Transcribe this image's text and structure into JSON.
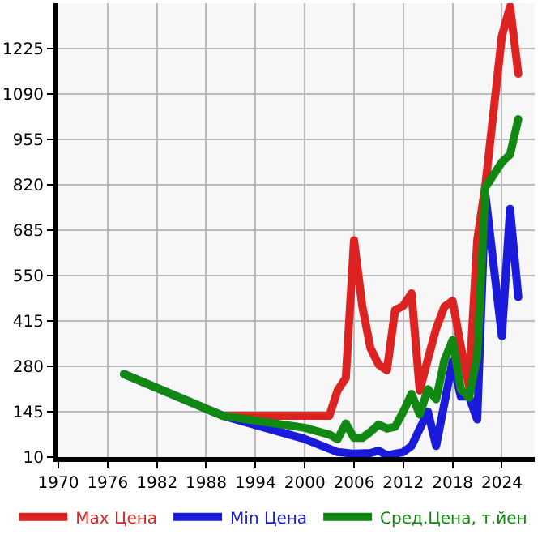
{
  "chart_data": {
    "type": "line",
    "xlim": [
      1970,
      2028
    ],
    "xticks": [
      1970,
      1976,
      1982,
      1988,
      1994,
      2000,
      2006,
      2012,
      2018,
      2024
    ],
    "ylim": [
      10,
      1360
    ],
    "yticks": [
      10,
      145,
      280,
      415,
      550,
      685,
      820,
      955,
      1090,
      1225
    ],
    "grid": true,
    "legend": "bottom",
    "marker": "none",
    "line_style": "solid",
    "series": [
      {
        "name": "Max Цена",
        "color": "#dd2222",
        "x": [
          1990,
          2003,
          2004,
          2005,
          2006,
          2007,
          2008,
          2009,
          2010,
          2011,
          2012,
          2013,
          2014,
          2015,
          2016,
          2017,
          2018,
          2019,
          2020,
          2021,
          2022,
          2023,
          2024,
          2025,
          2026
        ],
        "values": [
          133,
          133,
          208,
          245,
          655,
          460,
          334,
          285,
          268,
          447,
          460,
          497,
          208,
          302,
          392,
          457,
          475,
          340,
          220,
          655,
          820,
          1040,
          1262,
          1350,
          1150
        ]
      },
      {
        "name": "Min Цена",
        "color": "#1a1adb",
        "x": [
          1978,
          1990,
          2000,
          2004,
          2006,
          2008,
          2009,
          2010,
          2012,
          2013,
          2015,
          2016,
          2018,
          2019,
          2020,
          2021,
          2022,
          2024,
          2025,
          2026
        ],
        "values": [
          257,
          133,
          64,
          25,
          20,
          22,
          29,
          15,
          25,
          43,
          145,
          43,
          295,
          190,
          190,
          122,
          790,
          370,
          748,
          486
        ]
      },
      {
        "name": "Сред.Цена, т.йен",
        "color": "#118811",
        "x": [
          1978,
          1990,
          2000,
          2003,
          2004,
          2005,
          2006,
          2007,
          2008,
          2009,
          2010,
          2011,
          2012,
          2013,
          2014,
          2015,
          2016,
          2017,
          2018,
          2019,
          2020,
          2021,
          2022,
          2023,
          2024,
          2025,
          2026
        ],
        "values": [
          257,
          133,
          97,
          77,
          63,
          110,
          67,
          67,
          85,
          107,
          95,
          100,
          145,
          198,
          137,
          212,
          182,
          298,
          358,
          212,
          187,
          310,
          812,
          850,
          887,
          910,
          1015
        ]
      }
    ]
  }
}
